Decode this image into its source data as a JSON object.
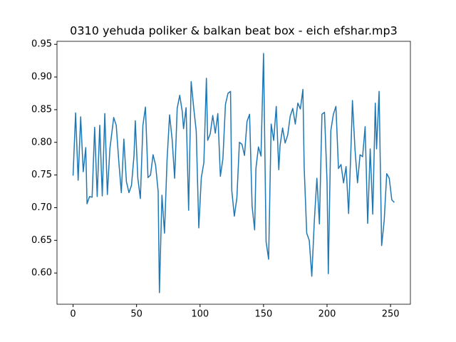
{
  "chart_data": {
    "type": "line",
    "title": "0310 yehuda poliker & balkan beat box - eich efshar.mp3",
    "x": [
      0,
      2,
      4,
      6,
      8,
      10,
      11,
      13,
      15,
      17,
      19,
      21,
      23,
      25,
      27,
      29,
      30,
      32,
      34,
      36,
      38,
      40,
      42,
      44,
      46,
      48,
      49,
      51,
      53,
      55,
      57,
      59,
      61,
      63,
      65,
      67,
      68,
      70,
      72,
      74,
      76,
      78,
      80,
      82,
      84,
      86,
      87,
      89,
      91,
      93,
      95,
      97,
      99,
      101,
      103,
      105,
      106,
      108,
      110,
      112,
      114,
      116,
      118,
      120,
      122,
      124,
      125,
      127,
      129,
      131,
      133,
      135,
      137,
      139,
      141,
      143,
      144,
      146,
      148,
      150,
      152,
      154,
      156,
      158,
      160,
      162,
      163,
      165,
      167,
      169,
      171,
      173,
      175,
      177,
      179,
      181,
      182,
      184,
      186,
      188,
      190,
      192,
      194,
      196,
      198,
      200,
      201,
      203,
      205,
      207,
      209,
      211,
      213,
      215,
      217,
      219,
      220,
      222,
      224,
      226,
      228,
      230,
      232,
      234,
      236,
      238,
      239,
      241,
      243,
      245,
      247,
      249,
      251,
      253
    ],
    "series": [
      {
        "color": "#1f77b4",
        "values": [
          0.749,
          0.845,
          0.742,
          0.839,
          0.755,
          0.792,
          0.706,
          0.717,
          0.716,
          0.823,
          0.717,
          0.826,
          0.718,
          0.844,
          0.72,
          0.79,
          0.806,
          0.838,
          0.826,
          0.771,
          0.723,
          0.805,
          0.74,
          0.723,
          0.734,
          0.78,
          0.833,
          0.745,
          0.714,
          0.826,
          0.854,
          0.746,
          0.75,
          0.781,
          0.765,
          0.725,
          0.57,
          0.719,
          0.661,
          0.772,
          0.842,
          0.805,
          0.745,
          0.852,
          0.872,
          0.847,
          0.821,
          0.853,
          0.696,
          0.893,
          0.853,
          0.817,
          0.669,
          0.746,
          0.769,
          0.898,
          0.803,
          0.813,
          0.841,
          0.814,
          0.844,
          0.748,
          0.775,
          0.858,
          0.875,
          0.878,
          0.726,
          0.687,
          0.715,
          0.8,
          0.797,
          0.78,
          0.832,
          0.843,
          0.702,
          0.666,
          0.76,
          0.793,
          0.779,
          0.936,
          0.648,
          0.621,
          0.828,
          0.803,
          0.855,
          0.758,
          0.795,
          0.822,
          0.799,
          0.811,
          0.84,
          0.852,
          0.828,
          0.86,
          0.851,
          0.881,
          0.762,
          0.661,
          0.65,
          0.595,
          0.68,
          0.745,
          0.675,
          0.843,
          0.846,
          0.74,
          0.599,
          0.818,
          0.843,
          0.855,
          0.76,
          0.766,
          0.738,
          0.763,
          0.691,
          0.8,
          0.864,
          0.79,
          0.738,
          0.781,
          0.778,
          0.824,
          0.676,
          0.79,
          0.69,
          0.86,
          0.79,
          0.878,
          0.642,
          0.68,
          0.752,
          0.745,
          0.712,
          0.708
        ]
      }
    ],
    "xlim": [
      -12.65,
      265.65
    ],
    "xticks": [
      0,
      50,
      100,
      150,
      200,
      250
    ],
    "ylim": [
      0.5522,
      0.9546
    ],
    "yticks": [
      {
        "value": 0.6,
        "label": "0.60"
      },
      0.65,
      {
        "value": 0.7,
        "label": "0.70"
      },
      0.75,
      {
        "value": 0.8,
        "label": "0.80"
      },
      0.85,
      {
        "value": 0.9,
        "label": "0.90"
      },
      0.95
    ]
  }
}
